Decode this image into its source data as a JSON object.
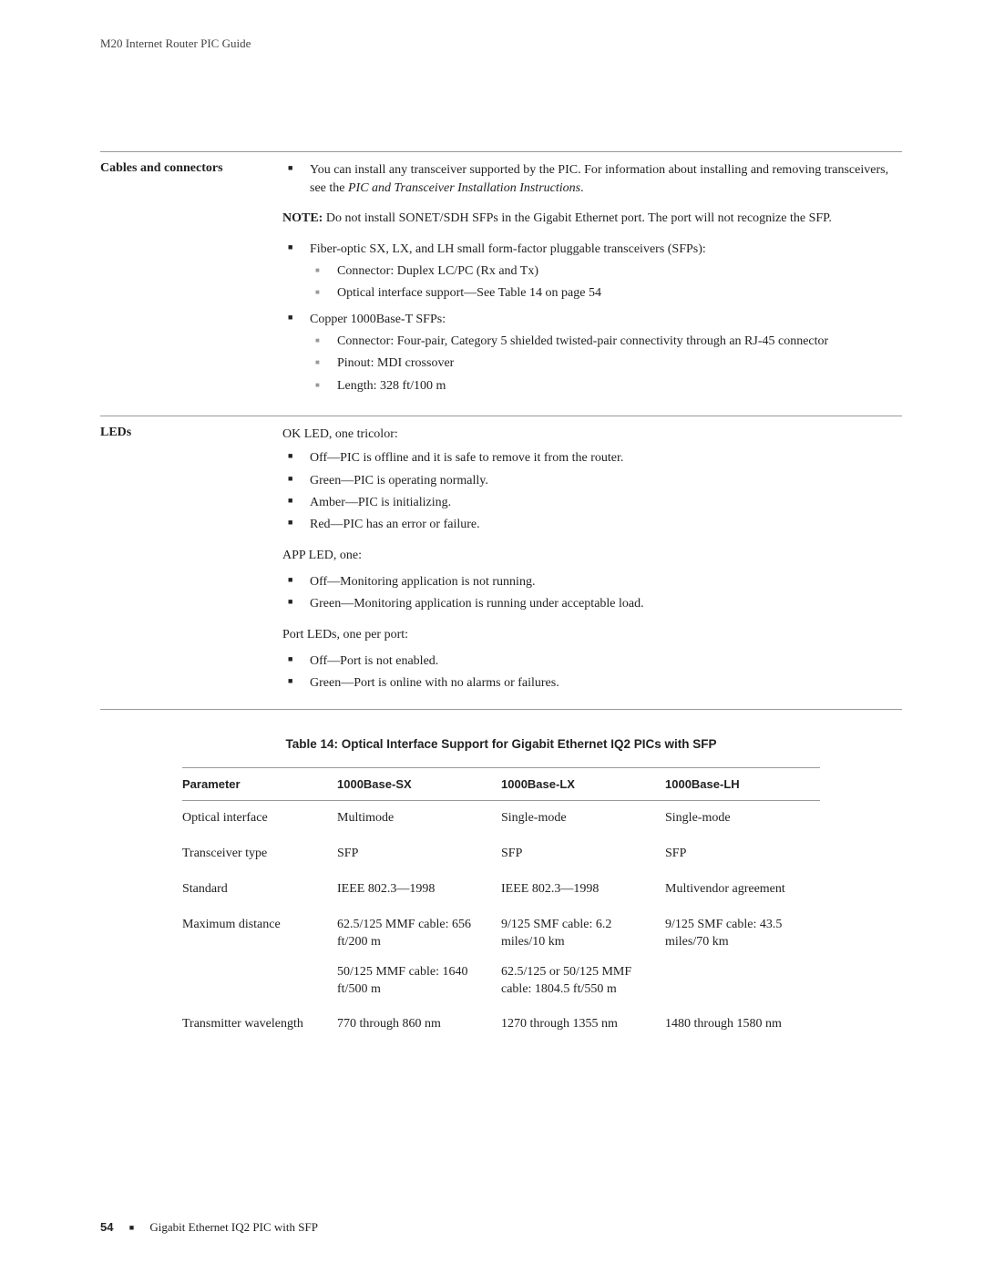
{
  "running_head": "M20 Internet Router PIC Guide",
  "section1": {
    "label": "Cables and connectors",
    "intro_bullet": "You can install any transceiver supported by the PIC. For information about installing and removing transceivers, see the ",
    "intro_italic": "PIC and Transceiver Installation Instructions",
    "intro_tail": ".",
    "note_label": "NOTE:",
    "note_text": "  Do not install SONET/SDH SFPs in the Gigabit Ethernet port. The port will not recognize the SFP.",
    "fiber_head": "Fiber-optic SX, LX, and LH small form-factor pluggable transceivers (SFPs):",
    "fiber_sub": [
      "Connector: Duplex LC/PC (Rx and Tx)",
      "Optical interface support—See Table 14 on page 54"
    ],
    "copper_head": "Copper 1000Base-T SFPs:",
    "copper_sub": [
      "Connector: Four-pair, Category 5 shielded twisted-pair connectivity through an RJ-45 connector",
      "Pinout: MDI crossover",
      "Length: 328 ft/100 m"
    ]
  },
  "section2": {
    "label": "LEDs",
    "ok_head": "OK LED, one tricolor:",
    "ok_items": [
      "Off—PIC is offline and it is safe to remove it from the router.",
      "Green—PIC is operating normally.",
      "Amber—PIC is initializing.",
      "Red—PIC has an error or failure."
    ],
    "app_head": "APP LED, one:",
    "app_items": [
      "Off—Monitoring application is not running.",
      "Green—Monitoring application is running under acceptable load."
    ],
    "port_head": "Port LEDs, one per port:",
    "port_items": [
      "Off—Port is not enabled.",
      "Green—Port is online with no alarms or failures."
    ]
  },
  "table": {
    "title": "Table 14: Optical Interface Support for Gigabit Ethernet IQ2 PICs with SFP",
    "columns": [
      "Parameter",
      "1000Base-SX",
      "1000Base-LX",
      "1000Base-LH"
    ],
    "col_widths": [
      "170px",
      "180px",
      "180px",
      "170px"
    ],
    "header_fontsize": 13,
    "body_fontsize": 14,
    "border_color": "#999",
    "rows": [
      {
        "param": "Optical interface",
        "sx": [
          {
            "text": "Multimode"
          }
        ],
        "lx": [
          {
            "text": "Single-mode"
          }
        ],
        "lh": [
          {
            "text": "Single-mode"
          }
        ]
      },
      {
        "param": "Transceiver type",
        "sx": [
          {
            "text": "SFP"
          }
        ],
        "lx": [
          {
            "text": "SFP"
          }
        ],
        "lh": [
          {
            "text": "SFP"
          }
        ]
      },
      {
        "param": "Standard",
        "sx": [
          {
            "text": "IEEE 802.3—1998"
          }
        ],
        "lx": [
          {
            "text": "IEEE 802.3—1998"
          }
        ],
        "lh": [
          {
            "text": "Multivendor agreement"
          }
        ]
      },
      {
        "param": "Maximum distance",
        "sx": [
          {
            "text": "62.5/125 MMF cable: 656 ft/200 m"
          },
          {
            "text": "50/125 MMF cable: 1640  ft/500 m"
          }
        ],
        "lx": [
          {
            "text": "9/125 SMF cable: 6.2 miles/10  km"
          },
          {
            "text": "62.5/125 or 50/125 MMF cable: 1804.5 ft/550 m"
          }
        ],
        "lh": [
          {
            "text": "9/125 SMF cable: 43.5  miles/70  km"
          }
        ]
      },
      {
        "param": "Transmitter wavelength",
        "sx": [
          {
            "text": "770 through 860 nm"
          }
        ],
        "lx": [
          {
            "text": "1270 through 1355 nm"
          }
        ],
        "lh": [
          {
            "text": "1480 through 1580 nm"
          }
        ]
      }
    ]
  },
  "footer": {
    "page": "54",
    "text": "Gigabit Ethernet IQ2 PIC with SFP"
  }
}
